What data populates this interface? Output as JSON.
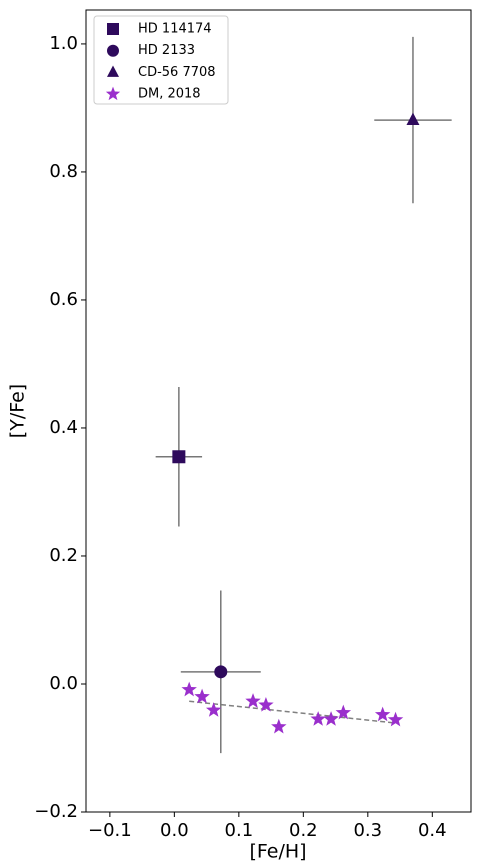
{
  "chart_data": {
    "type": "scatter",
    "xlabel": "[Fe/H]",
    "ylabel": "[Y/Fe]",
    "xlim": [
      -0.137,
      0.46
    ],
    "ylim": [
      -0.2,
      1.053
    ],
    "xticks": [
      {
        "value": -0.1,
        "label": "−0.1"
      },
      {
        "value": 0,
        "label": "0.0"
      },
      0.1,
      0.2,
      0.3,
      0.4
    ],
    "yticks": [
      {
        "value": -0.2,
        "label": "−0.2"
      },
      {
        "value": 0,
        "label": "0.0"
      },
      0.2,
      0.4,
      0.6,
      0.8,
      {
        "value": 1,
        "label": "1.0"
      }
    ],
    "legend": "upper left",
    "series": [
      {
        "name": "HD 114174",
        "color": "#2e0a5c",
        "marker": "square",
        "x": [
          0.007
        ],
        "y": [
          0.355
        ],
        "xerr": [
          0.036
        ],
        "yerr": [
          0.109
        ]
      },
      {
        "name": "HD 2133",
        "color": "#2e0a5c",
        "marker": "circle",
        "x": [
          0.072
        ],
        "y": [
          0.019
        ],
        "xerr": [
          0.062
        ],
        "yerr": [
          0.127
        ]
      },
      {
        "name": "CD-56 7708",
        "color": "#2e0a5c",
        "marker": "triangle",
        "x": [
          0.37
        ],
        "y": [
          0.881
        ],
        "xerr": [
          0.06
        ],
        "yerr": [
          0.13
        ]
      },
      {
        "name": "DM, 2018",
        "color": "#9a2fcc",
        "marker": "star",
        "x": [
          0.023,
          0.043,
          0.061,
          0.122,
          0.142,
          0.162,
          0.223,
          0.243,
          0.262,
          0.323,
          0.343
        ],
        "y": [
          -0.009,
          -0.02,
          -0.041,
          -0.027,
          -0.033,
          -0.067,
          -0.055,
          -0.055,
          -0.045,
          -0.048,
          -0.056
        ]
      }
    ],
    "trend": {
      "color": "#808080",
      "x": [
        0.023,
        0.343
      ],
      "y": [
        -0.027,
        -0.061
      ]
    }
  }
}
